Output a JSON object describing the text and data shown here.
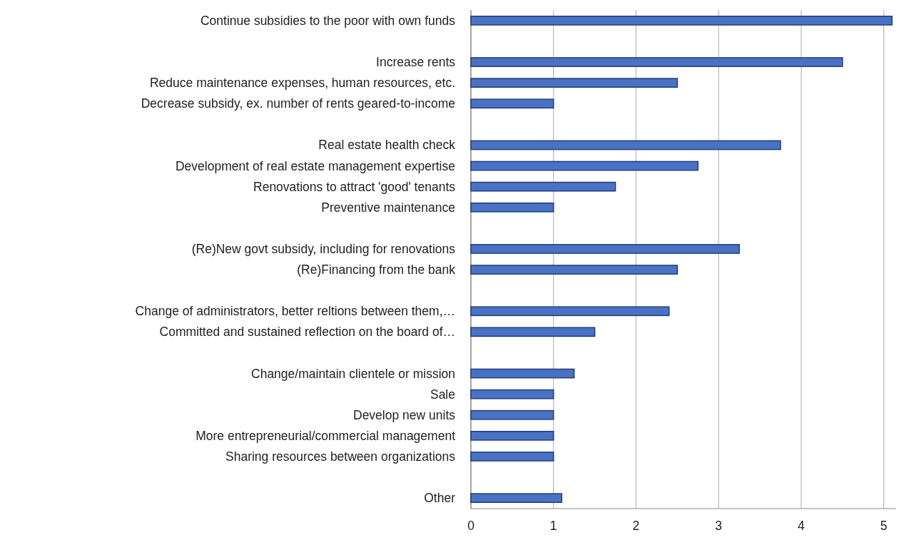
{
  "chart_data": {
    "type": "bar",
    "orientation": "horizontal",
    "categories": [
      "Continue subsidies to the poor with own funds",
      null,
      "Increase rents",
      "Reduce maintenance expenses, human resources, etc.",
      "Decrease subsidy, ex. number of rents geared-to-income",
      null,
      "Real estate health check",
      "Development of real estate management expertise",
      "Renovations to attract 'good' tenants",
      "Preventive maintenance",
      null,
      "(Re)New govt subsidy, including for renovations",
      "(Re)Financing from the bank",
      null,
      "Change of administrators, better reltions between them,…",
      "Committed and sustained reflection on the board of…",
      null,
      "Change/maintain clientele or mission",
      "Sale",
      "Develop new units",
      "More entrepreneurial/commercial management",
      "Sharing resources between organizations",
      null,
      "Other"
    ],
    "values": [
      5.1,
      null,
      4.5,
      2.5,
      1,
      null,
      3.75,
      2.75,
      1.75,
      1,
      null,
      3.25,
      2.5,
      null,
      2.4,
      1.5,
      null,
      1.25,
      1,
      1,
      1,
      1,
      null,
      1.1
    ],
    "color": "#4a72c4",
    "xlim": [
      0,
      5.15
    ],
    "xticks": [
      0,
      1,
      2,
      3,
      4,
      5
    ],
    "grid": "x"
  }
}
